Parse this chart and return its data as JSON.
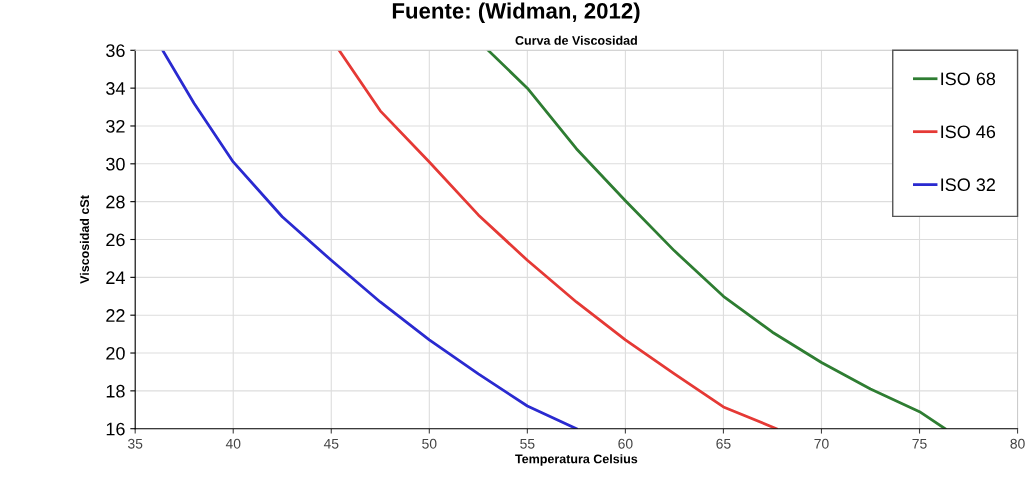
{
  "chart_data": {
    "type": "line",
    "title": "Fuente: (Widman, 2012)",
    "subtitle": "Curva de Viscosidad",
    "xlabel": "Temperatura Celsius",
    "ylabel": "Viscosidad cSt",
    "xlim": [
      35,
      80
    ],
    "xticks": [
      35,
      40,
      45,
      50,
      55,
      60,
      65,
      70,
      75,
      80
    ],
    "ylim": [
      16,
      36
    ],
    "yticks": [
      16,
      18,
      20,
      22,
      24,
      26,
      28,
      30,
      32,
      34,
      36
    ],
    "grid": true,
    "legend": "top right",
    "marker": "none",
    "line_style": "solid",
    "series": [
      {
        "name": "ISO 68",
        "color": "#2e7d32",
        "x": [
          53.0,
          55,
          57.5,
          60,
          62.5,
          65,
          67.5,
          70,
          72.5,
          75,
          76.3
        ],
        "values": [
          36,
          34,
          30.8,
          28.05,
          25.4,
          23.0,
          21.1,
          19.5,
          18.1,
          16.9,
          16
        ]
      },
      {
        "name": "ISO 46",
        "color": "#e53935",
        "x": [
          45.4,
          47.5,
          50,
          52.5,
          55,
          57.5,
          60,
          62.5,
          65,
          67.7
        ],
        "values": [
          36,
          32.8,
          30.1,
          27.3,
          24.9,
          22.7,
          20.7,
          18.9,
          17.15,
          16
        ]
      },
      {
        "name": "ISO 32",
        "color": "#2a2ad0",
        "x": [
          36.4,
          38,
          40,
          42.5,
          45,
          47.5,
          50,
          52.5,
          55,
          57.5
        ],
        "values": [
          36,
          33.2,
          30.1,
          27.2,
          24.9,
          22.7,
          20.7,
          18.9,
          17.2,
          16
        ]
      }
    ]
  }
}
